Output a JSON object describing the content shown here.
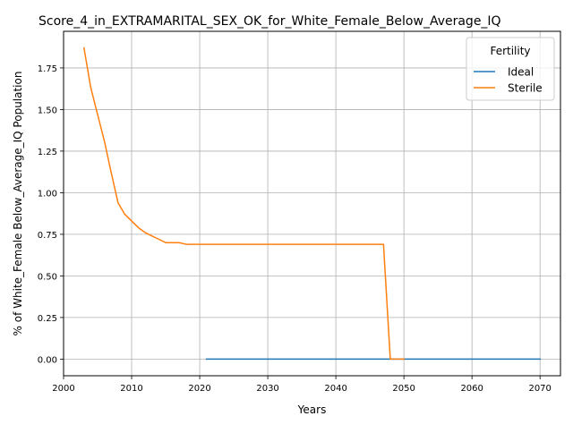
{
  "chart_data": {
    "type": "line",
    "title": "Score_4_in_EXTRAMARITAL_SEX_OK_for_White_Female_Below_Average_IQ",
    "xlabel": "Years",
    "ylabel": "% of White_Female Below_Average_IQ Population",
    "xlim": [
      2000,
      2073
    ],
    "ylim": [
      -0.1,
      1.97
    ],
    "xticks": [
      2000,
      2010,
      2020,
      2030,
      2040,
      2050,
      2060,
      2070
    ],
    "yticks": [
      0.0,
      0.25,
      0.5,
      0.75,
      1.0,
      1.25,
      1.5,
      1.75
    ],
    "grid": true,
    "legend": {
      "title": "Fertility",
      "placement": "top-right"
    },
    "series": [
      {
        "name": "Ideal",
        "color": "#1f77b4",
        "x": [
          2021,
          2025,
          2030,
          2035,
          2040,
          2045,
          2050,
          2055,
          2060,
          2065,
          2070
        ],
        "y": [
          0,
          0,
          0,
          0,
          0,
          0,
          0,
          0,
          0,
          0,
          0
        ]
      },
      {
        "name": "Sterile",
        "color": "#ff7f0e",
        "x": [
          2003,
          2004,
          2005,
          2006,
          2007,
          2008,
          2009,
          2010,
          2011,
          2012,
          2013,
          2014,
          2015,
          2016,
          2017,
          2018,
          2019,
          2020,
          2025,
          2030,
          2035,
          2040,
          2045,
          2047,
          2048,
          2049,
          2050
        ],
        "y": [
          1.87,
          1.63,
          1.47,
          1.31,
          1.12,
          0.94,
          0.87,
          0.83,
          0.79,
          0.76,
          0.74,
          0.72,
          0.7,
          0.7,
          0.7,
          0.69,
          0.69,
          0.69,
          0.69,
          0.69,
          0.69,
          0.69,
          0.69,
          0.69,
          0.0,
          0.0,
          0.0
        ]
      }
    ]
  }
}
